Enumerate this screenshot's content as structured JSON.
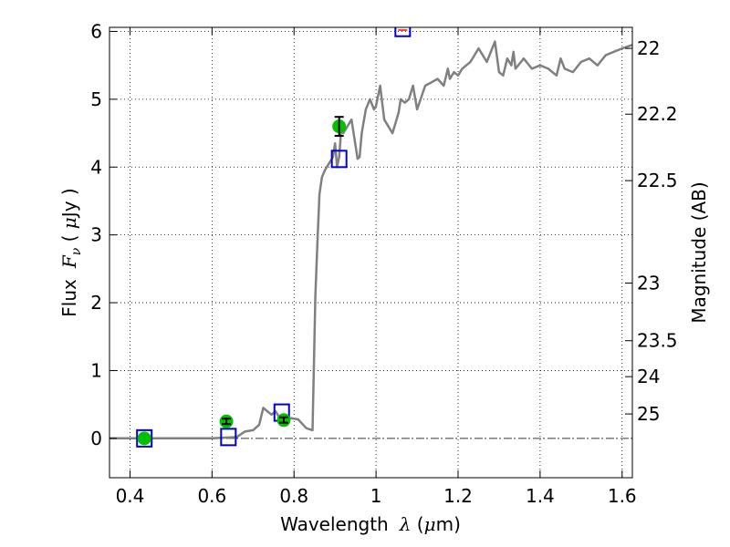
{
  "chart_data": {
    "type": "scatter",
    "xlabel": {
      "prefix": "Wavelength",
      "math": "λ",
      "unit_open": " (",
      "unit_math": "μ",
      "unit_rest": "m)"
    },
    "ylabel": {
      "prefix": "Flux",
      "math": "F",
      "math_sub": "ν",
      "unit_open": " ( ",
      "unit_math": "μ",
      "unit_rest": "Jy )"
    },
    "y2label": "Magnitude (AB)",
    "xlim": [
      0.35,
      1.625
    ],
    "ylim": [
      -0.58,
      6.06
    ],
    "x_ticks": [
      {
        "value": 0.4,
        "label": "0.4"
      },
      {
        "value": 0.6,
        "label": "0.6"
      },
      {
        "value": 0.8,
        "label": "0.8"
      },
      {
        "value": 1.0,
        "label": "1"
      },
      {
        "value": 1.2,
        "label": "1.2"
      },
      {
        "value": 1.4,
        "label": "1.4"
      },
      {
        "value": 1.6,
        "label": "1.6"
      }
    ],
    "y_ticks": [
      {
        "value": 0,
        "label": "0"
      },
      {
        "value": 1,
        "label": "1"
      },
      {
        "value": 2,
        "label": "2"
      },
      {
        "value": 3,
        "label": "3"
      },
      {
        "value": 4,
        "label": "4"
      },
      {
        "value": 5,
        "label": "5"
      },
      {
        "value": 6,
        "label": "6"
      }
    ],
    "y2_ticks": [
      {
        "flux": 5.75,
        "label": "22"
      },
      {
        "flux": 4.78,
        "label": "22.2"
      },
      {
        "flux": 3.8,
        "label": "22.5"
      },
      {
        "flux": 2.29,
        "label": "23"
      },
      {
        "flux": 1.44,
        "label": "23.5"
      },
      {
        "flux": 0.91,
        "label": "24"
      },
      {
        "flux": 0.36,
        "label": "25"
      }
    ],
    "grid": true,
    "zero_line": true,
    "series": [
      {
        "kind": "model-spectrum",
        "color": "#808080",
        "x": [
          0.35,
          0.42,
          0.5,
          0.6,
          0.66,
          0.68,
          0.7,
          0.715,
          0.725,
          0.735,
          0.745,
          0.755,
          0.765,
          0.775,
          0.79,
          0.81,
          0.83,
          0.845,
          0.852,
          0.857,
          0.862,
          0.868,
          0.875,
          0.885,
          0.895,
          0.9,
          0.905,
          0.91,
          0.915,
          0.92,
          0.93,
          0.94,
          0.955,
          0.96,
          0.965,
          0.975,
          0.985,
          0.995,
          1.0,
          1.01,
          1.02,
          1.04,
          1.055,
          1.06,
          1.07,
          1.08,
          1.09,
          1.1,
          1.12,
          1.135,
          1.15,
          1.165,
          1.175,
          1.18,
          1.19,
          1.2,
          1.21,
          1.23,
          1.25,
          1.27,
          1.29,
          1.3,
          1.31,
          1.32,
          1.33,
          1.335,
          1.34,
          1.36,
          1.38,
          1.4,
          1.42,
          1.44,
          1.45,
          1.46,
          1.48,
          1.5,
          1.52,
          1.54,
          1.56,
          1.58,
          1.6,
          1.625
        ],
        "y": [
          0.0,
          0.0,
          0.0,
          0.0,
          0.02,
          0.1,
          0.12,
          0.2,
          0.45,
          0.4,
          0.35,
          0.4,
          0.3,
          0.3,
          0.3,
          0.28,
          0.15,
          0.12,
          2.1,
          2.9,
          3.6,
          3.85,
          3.95,
          4.05,
          4.15,
          4.35,
          4.0,
          4.15,
          4.55,
          4.5,
          4.6,
          4.7,
          4.12,
          4.15,
          4.5,
          4.85,
          5.0,
          4.85,
          4.9,
          5.2,
          4.7,
          4.5,
          4.8,
          5.0,
          4.95,
          5.0,
          5.2,
          4.85,
          5.2,
          5.25,
          5.3,
          5.2,
          5.45,
          5.3,
          5.4,
          5.35,
          5.45,
          5.55,
          5.75,
          5.55,
          5.85,
          5.4,
          5.35,
          5.6,
          5.5,
          5.7,
          5.45,
          5.6,
          5.45,
          5.5,
          5.45,
          5.35,
          5.6,
          5.45,
          5.4,
          5.55,
          5.6,
          5.5,
          5.65,
          5.7,
          5.75,
          5.8
        ]
      },
      {
        "kind": "model-photometry",
        "marker": "open-square",
        "color": "#0000cc",
        "x": [
          0.435,
          0.64,
          0.77,
          0.91,
          1.065
        ],
        "y": [
          0.0,
          0.02,
          0.38,
          4.12,
          6.05
        ]
      },
      {
        "kind": "observed-photometry",
        "marker": "filled-circle",
        "color": "#00c000",
        "x": [
          0.435,
          0.635,
          0.775,
          0.91
        ],
        "y": [
          0.0,
          0.25,
          0.27,
          4.6
        ],
        "yerr": [
          0.0,
          0.04,
          0.04,
          0.14
        ]
      }
    ]
  }
}
